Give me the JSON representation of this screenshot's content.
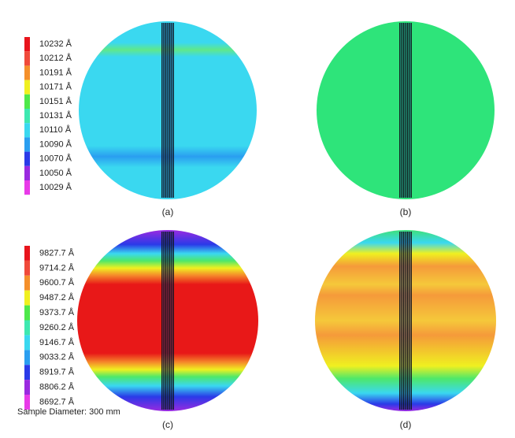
{
  "legend_top": {
    "labels": [
      "10232 Å",
      "10212 Å",
      "10191 Å",
      "10171 Å",
      "10151 Å",
      "10131 Å",
      "10110 Å",
      "10090 Å",
      "10070 Å",
      "10050 Å",
      "10029 Å"
    ]
  },
  "legend_bottom": {
    "labels": [
      "9827.7 Å",
      "9714.2 Å",
      "9600.7 Å",
      "9487.2 Å",
      "9373.7 Å",
      "9260.2 Å",
      "9146.7 Å",
      "9033.2 Å",
      "8919.7 Å",
      "8806.2 Å",
      "8692.7 Å"
    ]
  },
  "panels": [
    {
      "label": "(a)"
    },
    {
      "label": "(b)"
    },
    {
      "label": "(c)"
    },
    {
      "label": "(d)"
    }
  ],
  "footnote": "Sample Diameter: 300 mm"
}
